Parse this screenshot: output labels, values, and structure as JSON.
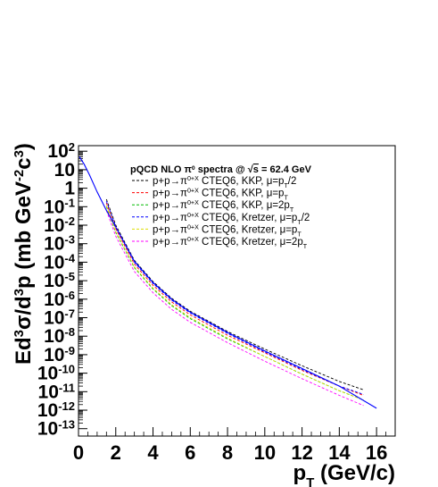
{
  "chart_data": {
    "type": "line",
    "title": "pQCD NLO π⁰ spectra @ √s = 62.4 GeV",
    "xlabel": "p_T (GeV/c)",
    "ylabel": "Ed³σ/d³p (mb GeV⁻²c³)",
    "xlim": [
      0,
      17
    ],
    "ylim_log10": [
      -13.4,
      2.3
    ],
    "log_y": true,
    "grid": false,
    "legend_position": "top-right",
    "x_ticks": [
      "0",
      "2",
      "4",
      "6",
      "8",
      "10",
      "12",
      "14",
      "16"
    ],
    "x_tick_values": [
      0,
      2,
      4,
      6,
      8,
      10,
      12,
      14,
      16
    ],
    "y_ticks": [
      {
        "exp": 2,
        "label": "10^2"
      },
      {
        "exp": 1,
        "label": "10"
      },
      {
        "exp": 0,
        "label": "1"
      },
      {
        "exp": -1,
        "label": "10^-1"
      },
      {
        "exp": -2,
        "label": "10^-2"
      },
      {
        "exp": -3,
        "label": "10^-3"
      },
      {
        "exp": -4,
        "label": "10^-4"
      },
      {
        "exp": -5,
        "label": "10^-5"
      },
      {
        "exp": -6,
        "label": "10^-6"
      },
      {
        "exp": -7,
        "label": "10^-7"
      },
      {
        "exp": -8,
        "label": "10^-8"
      },
      {
        "exp": -9,
        "label": "10^-9"
      },
      {
        "exp": -10,
        "label": "10^-10"
      },
      {
        "exp": -11,
        "label": "10^-11"
      },
      {
        "exp": -12,
        "label": "10^-12"
      },
      {
        "exp": -13,
        "label": "10^-13"
      }
    ],
    "series": [
      {
        "name": "p+p→π⁰+X CTEQ6, KKP, μ=p_T/2",
        "color": "#000000",
        "dashed": true,
        "x": [
          1.5,
          2,
          3,
          4,
          5,
          6,
          8,
          10,
          12,
          14,
          15.3
        ],
        "y_log10": [
          -0.6,
          -2.0,
          -3.9,
          -5.05,
          -5.95,
          -6.65,
          -7.75,
          -8.7,
          -9.6,
          -10.45,
          -10.9
        ]
      },
      {
        "name": "p+p→π⁰+X CTEQ6, KKP, μ=p_T",
        "color": "#ff0000",
        "dashed": true,
        "x": [
          1.5,
          2,
          3,
          4,
          5,
          6,
          8,
          10,
          12,
          14,
          15.3
        ],
        "y_log10": [
          -0.8,
          -2.2,
          -4.1,
          -5.25,
          -6.15,
          -6.85,
          -7.95,
          -8.9,
          -9.85,
          -10.7,
          -11.2
        ]
      },
      {
        "name": "p+p→π⁰+X CTEQ6, KKP, μ=2p_T",
        "color": "#00bb00",
        "dashed": true,
        "x": [
          1.5,
          2,
          3,
          4,
          5,
          6,
          8,
          10,
          12,
          14,
          15.3
        ],
        "y_log10": [
          -1.0,
          -2.4,
          -4.3,
          -5.45,
          -6.35,
          -7.05,
          -8.15,
          -9.1,
          -10.05,
          -10.95,
          -11.45
        ]
      },
      {
        "name": "p+p→π⁰+X CTEQ6, Kretzer, μ=p_T/2",
        "color": "#0000ff",
        "dashed": true,
        "x": [
          1.5,
          2,
          3,
          4,
          5,
          6,
          8,
          10,
          12,
          14,
          15.3
        ],
        "y_log10": [
          -0.7,
          -2.1,
          -4.0,
          -5.15,
          -6.05,
          -6.75,
          -7.85,
          -8.85,
          -9.8,
          -10.7,
          -11.15
        ]
      },
      {
        "name": "p+p→π⁰+X CTEQ6, Kretzer, μ=p_T",
        "color": "#dddd00",
        "dashed": true,
        "x": [
          1.5,
          2,
          3,
          4,
          5,
          6,
          8,
          10,
          12,
          14,
          15.3
        ],
        "y_log10": [
          -0.95,
          -2.35,
          -4.25,
          -5.4,
          -6.3,
          -7.0,
          -8.1,
          -9.1,
          -10.05,
          -10.95,
          -11.45
        ]
      },
      {
        "name": "p+p→π⁰+X CTEQ6, Kretzer, μ=2p_T",
        "color": "#ff00ff",
        "dashed": true,
        "x": [
          1.5,
          2,
          3,
          4,
          5,
          6,
          8,
          10,
          12,
          14,
          15.3
        ],
        "y_log10": [
          -1.2,
          -2.6,
          -4.5,
          -5.65,
          -6.55,
          -7.25,
          -8.35,
          -9.35,
          -10.3,
          -11.2,
          -11.75
        ]
      },
      {
        "name": "",
        "color": "#0000ff",
        "dashed": false,
        "x": [
          0.05,
          0.3,
          0.6,
          1,
          1.5,
          2,
          3,
          4,
          5,
          6,
          8,
          10,
          12,
          14,
          16
        ],
        "y_log10": [
          1.7,
          1.3,
          0.7,
          -0.2,
          -1.2,
          -2.1,
          -3.95,
          -5.1,
          -6.0,
          -6.7,
          -7.8,
          -8.8,
          -9.75,
          -10.7,
          -11.9
        ]
      }
    ]
  }
}
